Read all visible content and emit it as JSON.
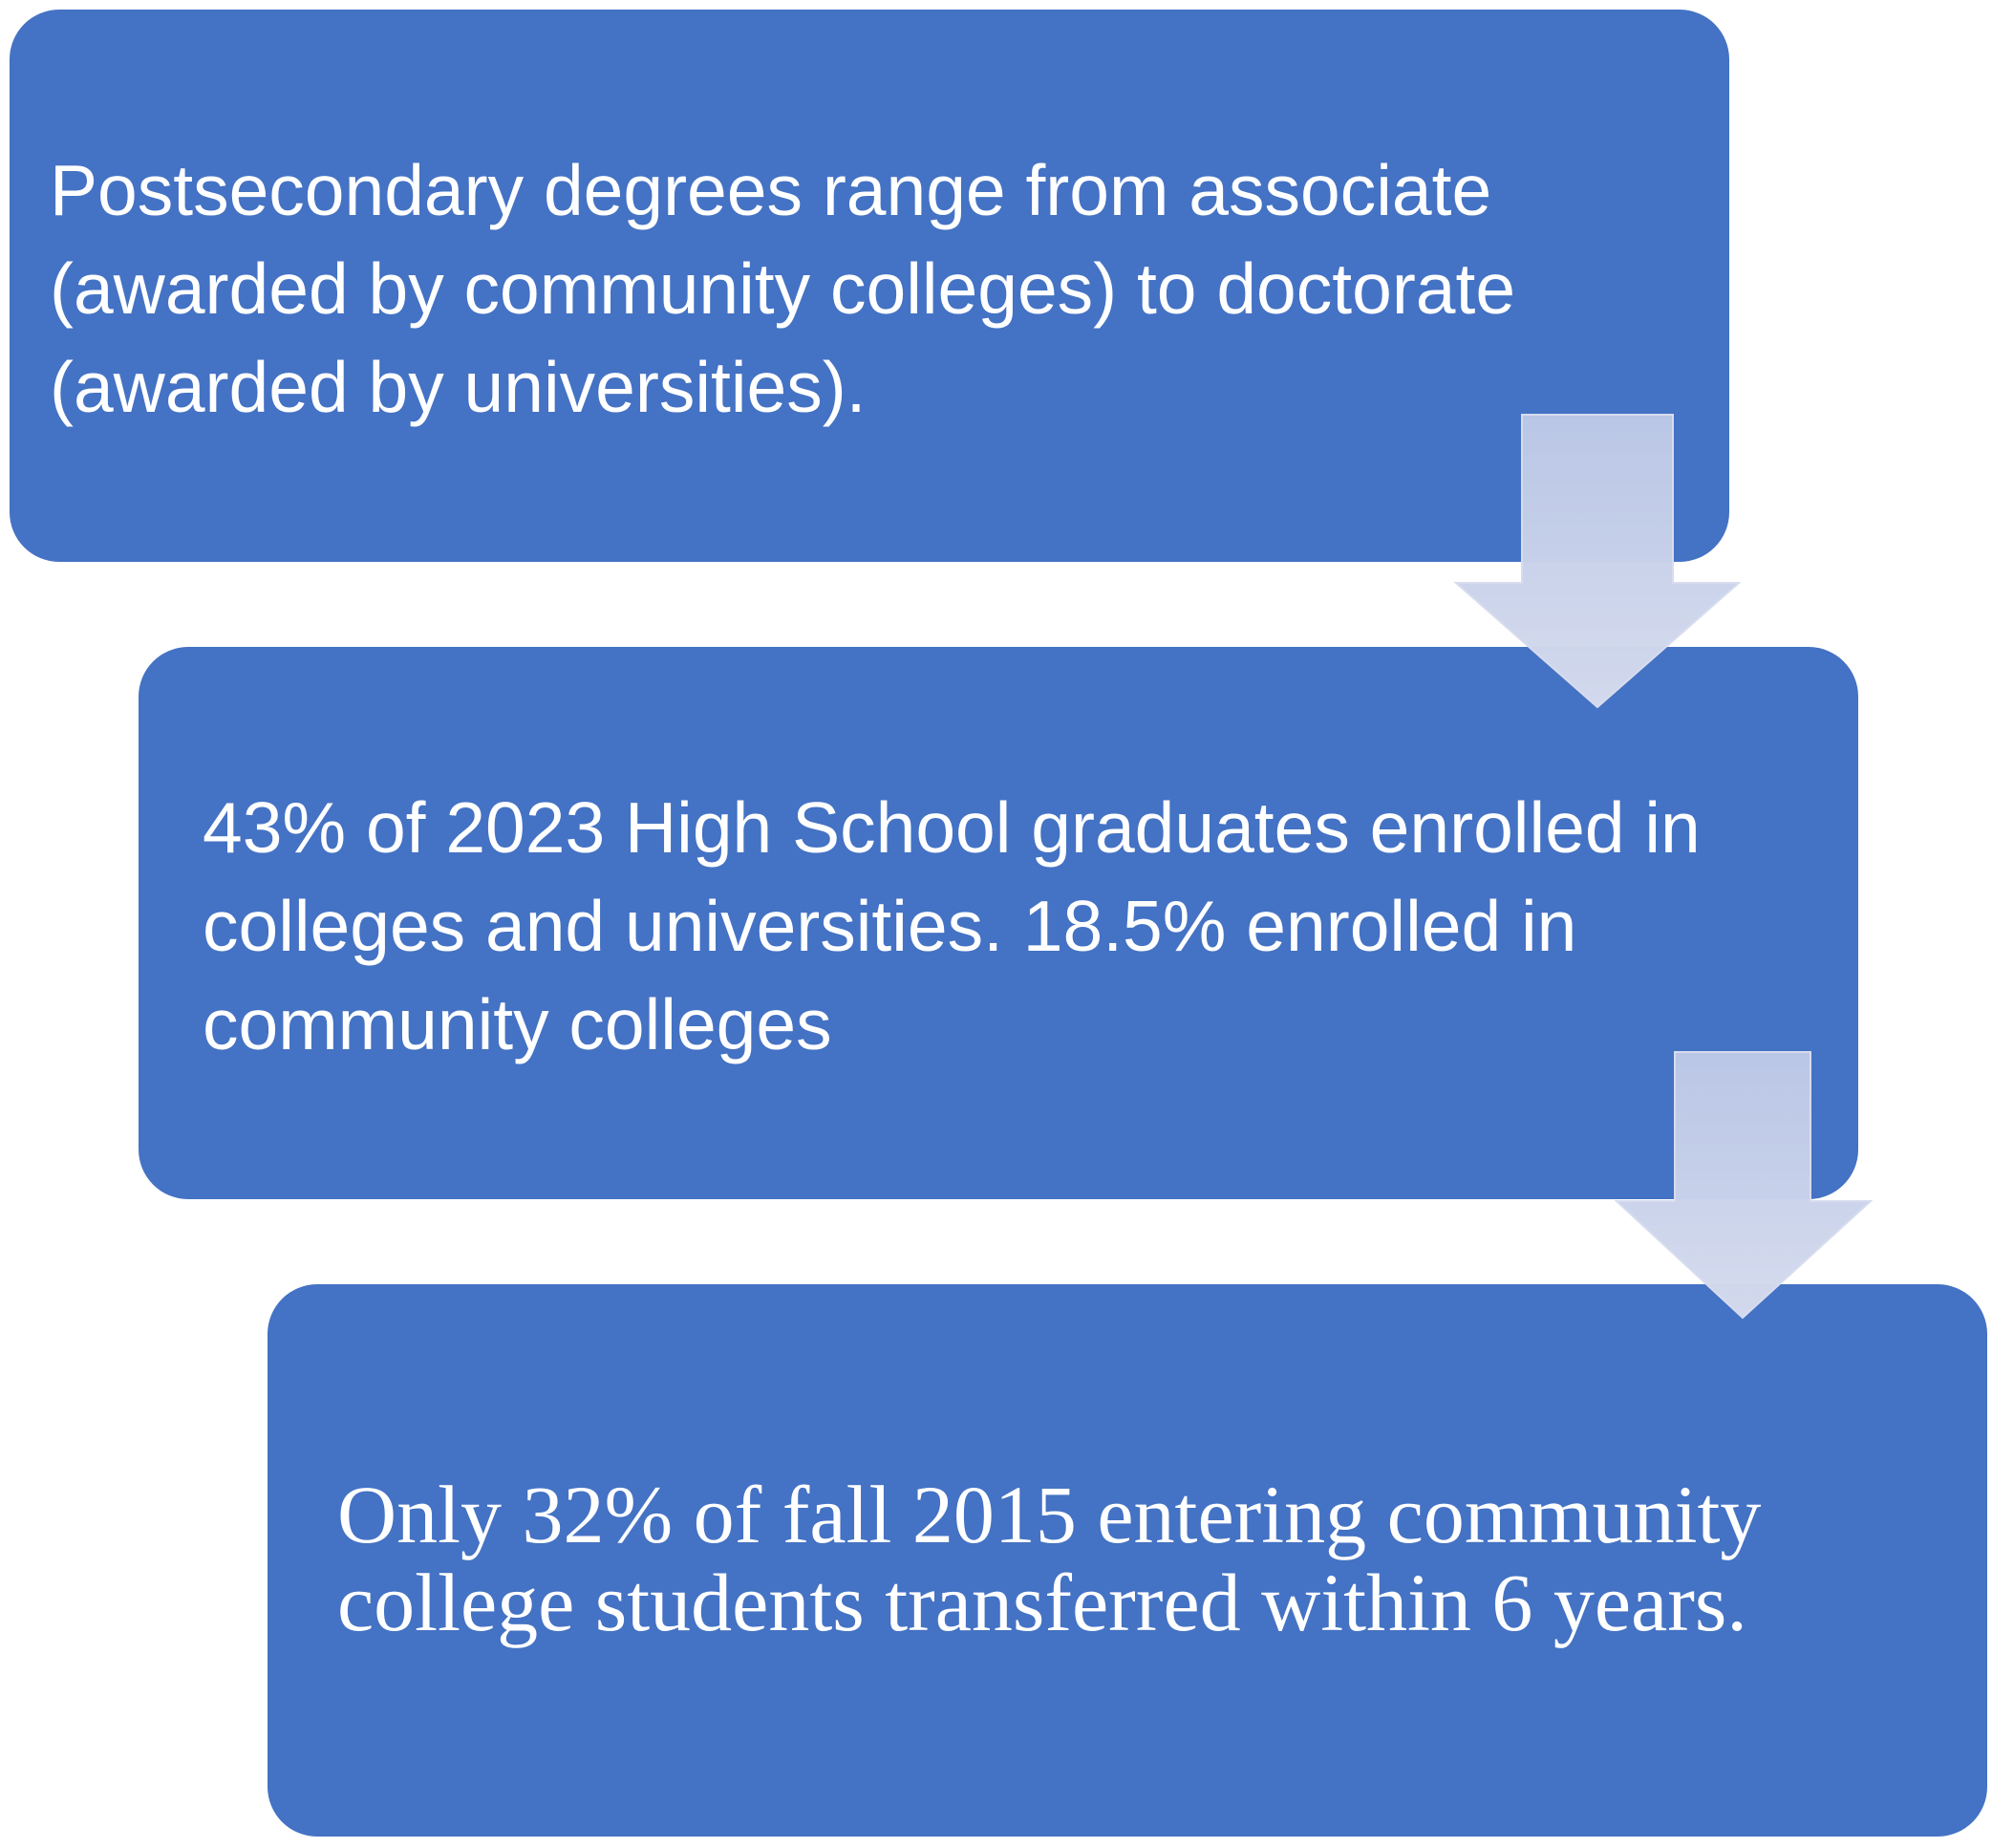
{
  "steps": [
    {
      "lines": [
        "Postsecondary degrees range from associate",
        "(awarded by community colleges) to doctorate",
        "(awarded by universities)."
      ]
    },
    {
      "lines": [
        "43% of 2023 High School graduates enrolled in",
        "colleges and universities. 18.5% enrolled in",
        "community colleges"
      ]
    },
    {
      "lines": [
        "Only 32% of fall 2015 entering community",
        "college students transferred within 6 years."
      ]
    }
  ],
  "colors": {
    "box_fill": "#4472c4",
    "box_text": "#ffffff",
    "arrow_fill": "#c3cbe6"
  },
  "connectors": {
    "shape": "down-arrow",
    "count": 2
  }
}
